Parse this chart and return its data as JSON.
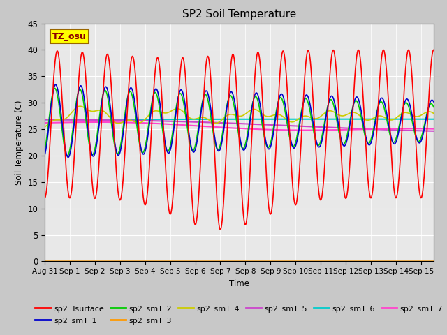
{
  "title": "SP2 Soil Temperature",
  "ylabel": "Soil Temperature (C)",
  "xlabel": "Time",
  "annotation": "TZ_osu",
  "ylim": [
    0,
    45
  ],
  "series": {
    "sp2_Tsurface": {
      "color": "#ff0000",
      "lw": 1.2
    },
    "sp2_smT_1": {
      "color": "#0000cc",
      "lw": 1.2
    },
    "sp2_smT_2": {
      "color": "#00cc00",
      "lw": 1.2
    },
    "sp2_smT_3": {
      "color": "#ff9900",
      "lw": 1.5
    },
    "sp2_smT_4": {
      "color": "#cccc00",
      "lw": 1.2
    },
    "sp2_smT_5": {
      "color": "#cc44cc",
      "lw": 1.5
    },
    "sp2_smT_6": {
      "color": "#00cccc",
      "lw": 1.5
    },
    "sp2_smT_7": {
      "color": "#ff44cc",
      "lw": 1.5
    }
  },
  "xtick_labels": [
    "Aug 31",
    "Sep 1",
    "Sep 2",
    "Sep 3",
    "Sep 4",
    "Sep 5",
    "Sep 6",
    "Sep 7",
    "Sep 8",
    "Sep 9",
    "Sep 10",
    "Sep 11",
    "Sep 12",
    "Sep 13",
    "Sep 14",
    "Sep 15"
  ],
  "ytick_labels": [
    "0",
    "5",
    "10",
    "15",
    "20",
    "25",
    "30",
    "35",
    "40",
    "45"
  ],
  "fig_facecolor": "#c8c8c8",
  "ax_facecolor": "#e8e8e8"
}
